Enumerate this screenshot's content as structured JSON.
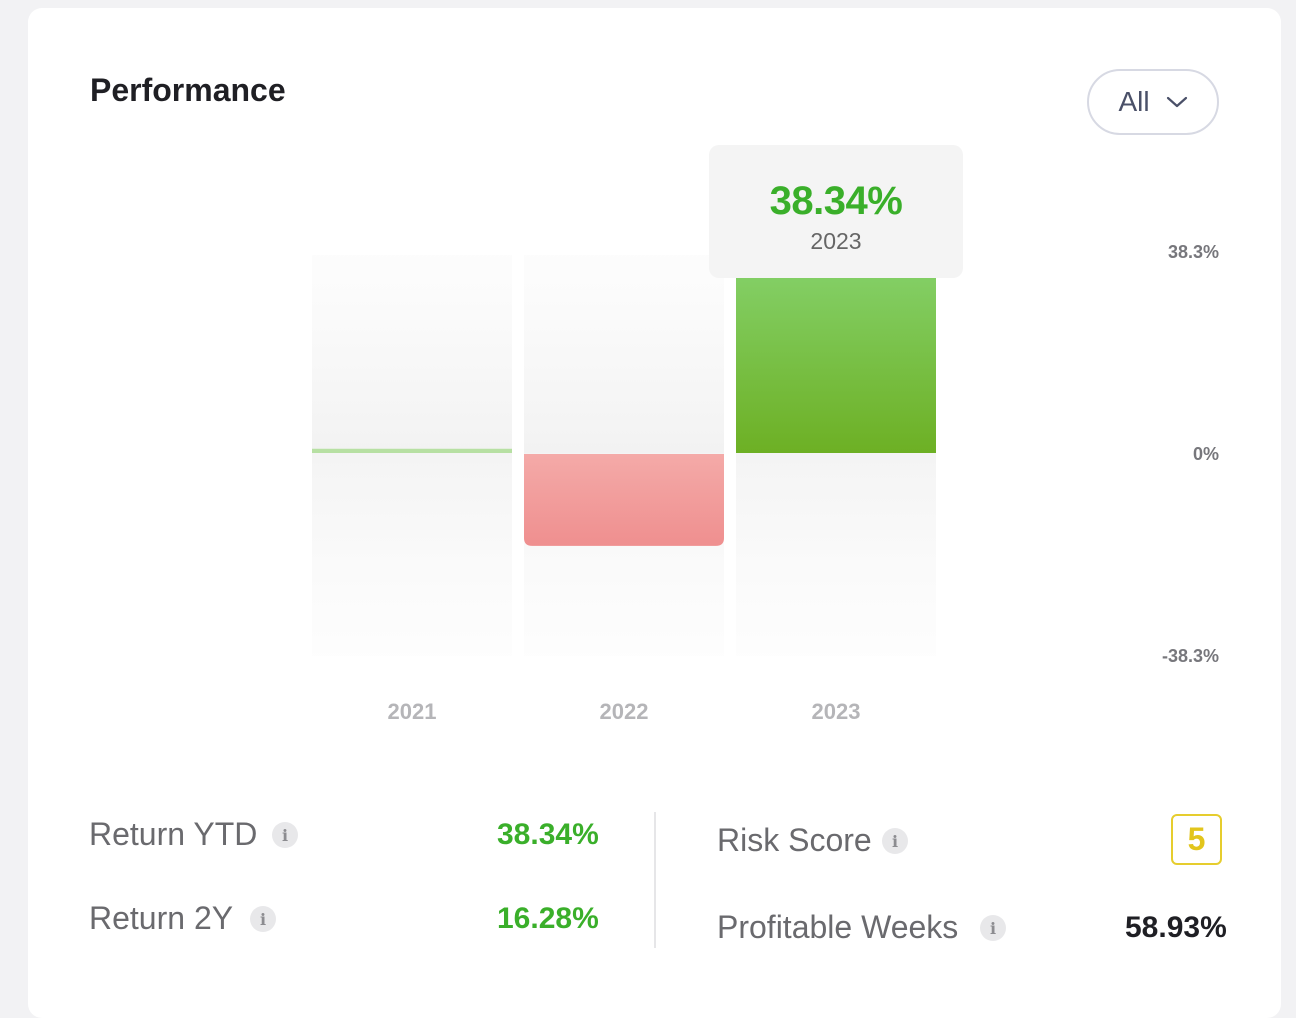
{
  "header": {
    "title": "Performance",
    "range_selector": "All"
  },
  "tooltip": {
    "value": "38.34%",
    "category": "2023"
  },
  "chart_data": {
    "type": "bar",
    "categories": [
      "2021",
      "2022",
      "2023"
    ],
    "values": [
      0.8,
      -17.6,
      38.34
    ],
    "ylim": [
      -38.3,
      38.3
    ],
    "y_tick_labels": [
      "38.3%",
      "0%",
      "-38.3%"
    ],
    "y_ticks": [
      38.3,
      0,
      -38.3
    ],
    "highlighted_category": "2023",
    "colors": {
      "positive": "#6db024",
      "positive_top": "#86d36e",
      "negative": "#ef8f8f",
      "negative_top": "#f4aaa8"
    }
  },
  "stats": {
    "return_ytd": {
      "label": "Return YTD",
      "value": "38.34%"
    },
    "return_2y": {
      "label": "Return 2Y",
      "value": "16.28%"
    },
    "risk_score": {
      "label": "Risk Score",
      "value": "5"
    },
    "profitable_weeks": {
      "label": "Profitable Weeks",
      "value": "58.93%"
    }
  },
  "icons": {
    "info": "i",
    "dropdown": "chevron-down-icon"
  }
}
